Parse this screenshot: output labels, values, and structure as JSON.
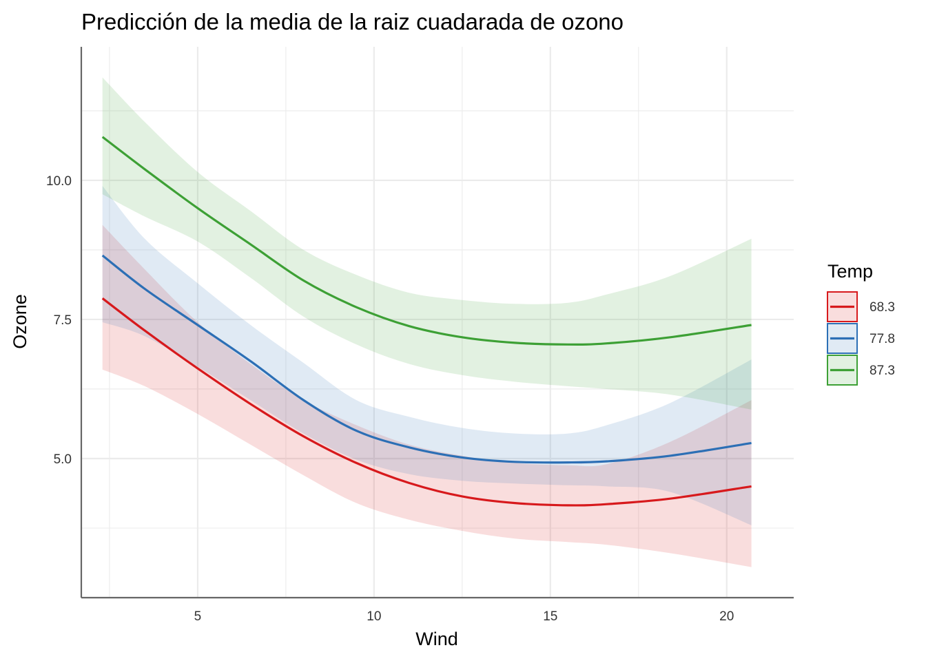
{
  "chart_data": {
    "type": "line",
    "title": "Predicción de la media de la raiz cuadarada de ozono",
    "xlabel": "Wind",
    "ylabel": "Ozone",
    "xlim": [
      1.7,
      21.9
    ],
    "ylim": [
      2.5,
      12.4
    ],
    "x_ticks": [
      5,
      10,
      15,
      20
    ],
    "x_tick_labels": [
      "5",
      "10",
      "15",
      "20"
    ],
    "y_ticks": [
      5.0,
      7.5,
      10.0
    ],
    "y_tick_labels": [
      "5.0",
      "7.5",
      "10.0"
    ],
    "grid": true,
    "legend": {
      "title": "Temp",
      "placement": "right"
    },
    "x": [
      2.3,
      3.5,
      5.0,
      6.5,
      8.0,
      9.5,
      11.0,
      12.5,
      14.0,
      15.5,
      16.6,
      18.4,
      20.7
    ],
    "series": [
      {
        "name": "68.3",
        "color": "#d7191c",
        "values": [
          7.88,
          7.3,
          6.62,
          5.98,
          5.4,
          4.92,
          4.56,
          4.32,
          4.2,
          4.16,
          4.18,
          4.28,
          4.5
        ],
        "lower": [
          6.6,
          6.3,
          5.8,
          5.25,
          4.7,
          4.2,
          3.9,
          3.7,
          3.56,
          3.5,
          3.45,
          3.3,
          3.05
        ],
        "upper": [
          9.2,
          8.4,
          7.45,
          6.7,
          6.05,
          5.6,
          5.25,
          5.05,
          4.92,
          4.88,
          4.9,
          5.3,
          6.05
        ]
      },
      {
        "name": "77.8",
        "color": "#2c6fb5",
        "values": [
          8.65,
          8.05,
          7.4,
          6.75,
          6.05,
          5.5,
          5.2,
          5.02,
          4.94,
          4.93,
          4.95,
          5.05,
          5.28
        ],
        "lower": [
          7.45,
          7.2,
          6.65,
          6.05,
          5.45,
          4.98,
          4.72,
          4.6,
          4.55,
          4.52,
          4.5,
          4.4,
          3.8
        ],
        "upper": [
          9.9,
          8.95,
          8.15,
          7.4,
          6.72,
          6.05,
          5.75,
          5.55,
          5.45,
          5.45,
          5.6,
          6.0,
          6.78
        ]
      },
      {
        "name": "87.3",
        "color": "#3da035",
        "values": [
          10.78,
          10.2,
          9.5,
          8.85,
          8.2,
          7.72,
          7.38,
          7.18,
          7.08,
          7.05,
          7.07,
          7.18,
          7.4
        ],
        "lower": [
          9.75,
          9.35,
          8.9,
          8.25,
          7.55,
          7.05,
          6.7,
          6.5,
          6.38,
          6.3,
          6.25,
          6.15,
          5.88
        ],
        "upper": [
          11.85,
          11.05,
          10.15,
          9.45,
          8.75,
          8.3,
          7.98,
          7.85,
          7.78,
          7.8,
          7.95,
          8.28,
          8.95
        ]
      }
    ]
  }
}
